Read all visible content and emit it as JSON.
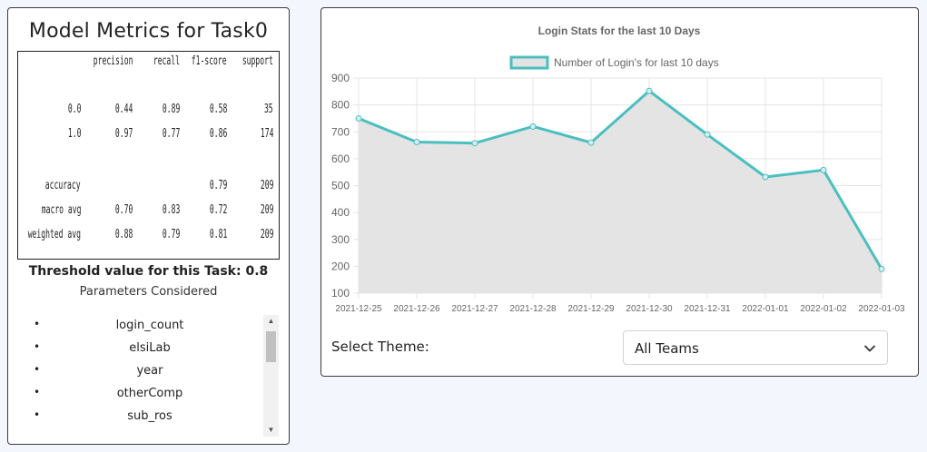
{
  "metrics": {
    "title": "Model Metrics for Task0",
    "report": {
      "headers": [
        "precision",
        "recall",
        "f1-score",
        "support"
      ],
      "rows": [
        {
          "label": "0.0",
          "precision": "0.44",
          "recall": "0.89",
          "f1": "0.58",
          "support": "35"
        },
        {
          "label": "1.0",
          "precision": "0.97",
          "recall": "0.77",
          "f1": "0.86",
          "support": "174"
        },
        {
          "label": "accuracy",
          "precision": "",
          "recall": "",
          "f1": "0.79",
          "support": "209"
        },
        {
          "label": "macro avg",
          "precision": "0.70",
          "recall": "0.83",
          "f1": "0.72",
          "support": "209"
        },
        {
          "label": "weighted avg",
          "precision": "0.88",
          "recall": "0.79",
          "f1": "0.81",
          "support": "209"
        }
      ]
    },
    "threshold_text": "Threshold value for this Task: 0.8",
    "params_title": "Parameters Considered",
    "params": [
      "login_count",
      "elsiLab",
      "year",
      "otherComp",
      "sub_ros"
    ],
    "bullet": "•"
  },
  "chart_data": {
    "type": "line",
    "title": "Login Stats for the last 10 Days",
    "legend": "Number of Login's for last 10 days",
    "legend_position": "top",
    "x": [
      "2021-12-25",
      "2021-12-26",
      "2021-12-27",
      "2021-12-28",
      "2021-12-29",
      "2021-12-30",
      "2021-12-31",
      "2022-01-01",
      "2022-01-02",
      "2022-01-03"
    ],
    "values": [
      750,
      662,
      658,
      720,
      660,
      852,
      690,
      532,
      558,
      190
    ],
    "ylim": [
      100,
      900
    ],
    "yticks": [
      100,
      200,
      300,
      400,
      500,
      600,
      700,
      800,
      900
    ],
    "grid": true,
    "fill": true,
    "line_color": "#4bbfbf",
    "fill_color": "#e3e3e3"
  },
  "theme": {
    "label": "Select Theme:",
    "selected": "All Teams"
  }
}
